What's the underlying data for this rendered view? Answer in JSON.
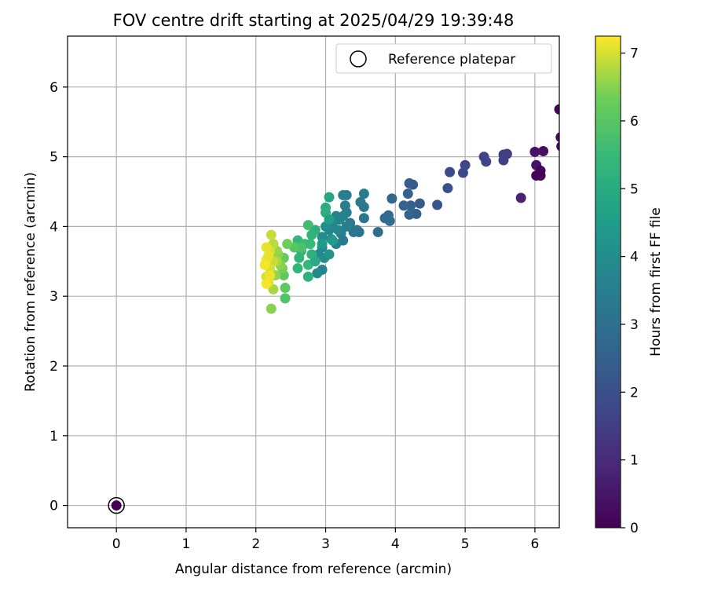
{
  "chart_data": {
    "type": "scatter",
    "title": "FOV centre drift starting at 2025/04/29 19:39:48",
    "xlabel": "Angular distance from reference (arcmin)",
    "ylabel": "Rotation from reference (arcmin)",
    "xlim": [
      -0.7,
      6.35
    ],
    "ylim": [
      -0.32,
      6.73
    ],
    "xticks": [
      "0",
      "1",
      "2",
      "3",
      "4",
      "5",
      "6"
    ],
    "yticks": [
      "0",
      "1",
      "2",
      "3",
      "4",
      "5",
      "6"
    ],
    "grid": true,
    "legend": {
      "position": "top-right",
      "entries": [
        {
          "label": "Reference platepar",
          "marker": "open-circle"
        }
      ]
    },
    "colorbar": {
      "label": "Hours from first FF file",
      "range": [
        0,
        7.25
      ],
      "ticks": [
        "0",
        "1",
        "2",
        "3",
        "4",
        "5",
        "6",
        "7"
      ],
      "colormap": "viridis"
    },
    "reference_point": {
      "x": 0,
      "y": 0
    },
    "series": [
      {
        "points": [
          {
            "x": 6.35,
            "y": 5.68,
            "t": 0.15
          },
          {
            "x": 6.37,
            "y": 5.28,
            "t": 0.2
          },
          {
            "x": 6.38,
            "y": 5.15,
            "t": 0.25
          },
          {
            "x": 6.12,
            "y": 5.08,
            "t": 0.35
          },
          {
            "x": 6.0,
            "y": 5.07,
            "t": 0.4
          },
          {
            "x": 6.02,
            "y": 4.88,
            "t": 0.45
          },
          {
            "x": 6.08,
            "y": 4.8,
            "t": 0.1
          },
          {
            "x": 6.08,
            "y": 4.73,
            "t": 0.05
          },
          {
            "x": 6.02,
            "y": 4.73,
            "t": 0.1
          },
          {
            "x": 5.8,
            "y": 4.41,
            "t": 0.8
          },
          {
            "x": 5.6,
            "y": 5.04,
            "t": 1.5
          },
          {
            "x": 5.55,
            "y": 5.03,
            "t": 1.55
          },
          {
            "x": 5.55,
            "y": 4.95,
            "t": 1.6
          },
          {
            "x": 5.3,
            "y": 4.93,
            "t": 1.7
          },
          {
            "x": 5.27,
            "y": 5.0,
            "t": 1.65
          },
          {
            "x": 5.0,
            "y": 4.88,
            "t": 1.8
          },
          {
            "x": 4.97,
            "y": 4.77,
            "t": 1.85
          },
          {
            "x": 4.78,
            "y": 4.78,
            "t": 1.9
          },
          {
            "x": 4.75,
            "y": 4.55,
            "t": 2.0
          },
          {
            "x": 4.6,
            "y": 4.31,
            "t": 2.2
          },
          {
            "x": 4.35,
            "y": 4.33,
            "t": 2.3
          },
          {
            "x": 4.3,
            "y": 4.18,
            "t": 2.4
          },
          {
            "x": 4.25,
            "y": 4.6,
            "t": 2.35
          },
          {
            "x": 4.2,
            "y": 4.62,
            "t": 2.4
          },
          {
            "x": 4.18,
            "y": 4.47,
            "t": 2.5
          },
          {
            "x": 4.22,
            "y": 4.3,
            "t": 2.55
          },
          {
            "x": 4.12,
            "y": 4.3,
            "t": 2.6
          },
          {
            "x": 4.2,
            "y": 4.17,
            "t": 2.6
          },
          {
            "x": 3.95,
            "y": 4.4,
            "t": 2.7
          },
          {
            "x": 3.9,
            "y": 4.16,
            "t": 2.8
          },
          {
            "x": 3.85,
            "y": 4.12,
            "t": 2.85
          },
          {
            "x": 3.92,
            "y": 4.08,
            "t": 2.9
          },
          {
            "x": 3.75,
            "y": 3.92,
            "t": 2.95
          },
          {
            "x": 3.55,
            "y": 4.47,
            "t": 3.4
          },
          {
            "x": 3.55,
            "y": 4.28,
            "t": 3.25
          },
          {
            "x": 3.55,
            "y": 4.12,
            "t": 3.2
          },
          {
            "x": 3.5,
            "y": 4.35,
            "t": 3.3
          },
          {
            "x": 3.48,
            "y": 3.92,
            "t": 3.15
          },
          {
            "x": 3.45,
            "y": 3.95,
            "t": 3.1
          },
          {
            "x": 3.4,
            "y": 3.92,
            "t": 3.2
          },
          {
            "x": 3.35,
            "y": 4.05,
            "t": 3.3
          },
          {
            "x": 3.3,
            "y": 4.45,
            "t": 3.45
          },
          {
            "x": 3.25,
            "y": 4.45,
            "t": 3.55
          },
          {
            "x": 3.28,
            "y": 4.3,
            "t": 3.5
          },
          {
            "x": 3.3,
            "y": 4.2,
            "t": 3.4
          },
          {
            "x": 3.25,
            "y": 4.15,
            "t": 3.6
          },
          {
            "x": 3.2,
            "y": 4.1,
            "t": 3.65
          },
          {
            "x": 3.15,
            "y": 4.15,
            "t": 3.7
          },
          {
            "x": 3.3,
            "y": 4.0,
            "t": 3.5
          },
          {
            "x": 3.22,
            "y": 3.9,
            "t": 3.45
          },
          {
            "x": 3.25,
            "y": 3.8,
            "t": 3.35
          },
          {
            "x": 3.15,
            "y": 3.75,
            "t": 3.6
          },
          {
            "x": 3.18,
            "y": 3.95,
            "t": 3.75
          },
          {
            "x": 3.1,
            "y": 4.05,
            "t": 3.8
          },
          {
            "x": 3.05,
            "y": 3.95,
            "t": 3.85
          },
          {
            "x": 3.08,
            "y": 3.82,
            "t": 3.9
          },
          {
            "x": 3.0,
            "y": 4.0,
            "t": 4.0
          },
          {
            "x": 2.95,
            "y": 3.85,
            "t": 3.95
          },
          {
            "x": 2.95,
            "y": 3.7,
            "t": 3.8
          },
          {
            "x": 2.9,
            "y": 3.6,
            "t": 3.85
          },
          {
            "x": 2.98,
            "y": 3.55,
            "t": 3.95
          },
          {
            "x": 3.05,
            "y": 3.6,
            "t": 4.2
          },
          {
            "x": 2.95,
            "y": 3.38,
            "t": 3.7
          },
          {
            "x": 2.88,
            "y": 3.33,
            "t": 3.9
          },
          {
            "x": 3.05,
            "y": 4.42,
            "t": 4.8
          },
          {
            "x": 3.0,
            "y": 4.27,
            "t": 5.0
          },
          {
            "x": 3.0,
            "y": 4.2,
            "t": 5.1
          },
          {
            "x": 3.05,
            "y": 4.1,
            "t": 4.6
          },
          {
            "x": 3.1,
            "y": 3.8,
            "t": 4.5
          },
          {
            "x": 2.95,
            "y": 3.75,
            "t": 4.4
          },
          {
            "x": 2.85,
            "y": 3.95,
            "t": 5.1
          },
          {
            "x": 2.8,
            "y": 3.88,
            "t": 5.3
          },
          {
            "x": 2.75,
            "y": 4.02,
            "t": 5.6
          },
          {
            "x": 2.78,
            "y": 3.75,
            "t": 5.5
          },
          {
            "x": 2.8,
            "y": 3.6,
            "t": 5.2
          },
          {
            "x": 2.7,
            "y": 3.75,
            "t": 5.5
          },
          {
            "x": 2.65,
            "y": 3.65,
            "t": 5.4
          },
          {
            "x": 2.6,
            "y": 3.8,
            "t": 5.4
          },
          {
            "x": 2.62,
            "y": 3.55,
            "t": 5.3
          },
          {
            "x": 2.6,
            "y": 3.4,
            "t": 5.35
          },
          {
            "x": 2.75,
            "y": 3.45,
            "t": 5.4
          },
          {
            "x": 2.75,
            "y": 3.28,
            "t": 5.2
          },
          {
            "x": 2.85,
            "y": 3.5,
            "t": 5.0
          },
          {
            "x": 2.65,
            "y": 3.7,
            "t": 5.8
          },
          {
            "x": 2.55,
            "y": 3.7,
            "t": 6.0
          },
          {
            "x": 2.45,
            "y": 3.75,
            "t": 6.3
          },
          {
            "x": 2.4,
            "y": 3.55,
            "t": 6.2
          },
          {
            "x": 2.4,
            "y": 3.3,
            "t": 6.1
          },
          {
            "x": 2.42,
            "y": 3.12,
            "t": 6.1
          },
          {
            "x": 2.42,
            "y": 2.97,
            "t": 5.9
          },
          {
            "x": 2.38,
            "y": 3.4,
            "t": 6.4
          },
          {
            "x": 2.35,
            "y": 3.45,
            "t": 6.5
          },
          {
            "x": 2.32,
            "y": 3.6,
            "t": 6.5
          },
          {
            "x": 2.3,
            "y": 3.65,
            "t": 6.6
          },
          {
            "x": 2.3,
            "y": 3.5,
            "t": 6.7
          },
          {
            "x": 2.28,
            "y": 3.3,
            "t": 6.6
          },
          {
            "x": 2.25,
            "y": 3.75,
            "t": 6.8
          },
          {
            "x": 2.22,
            "y": 3.88,
            "t": 6.9
          },
          {
            "x": 2.25,
            "y": 3.5,
            "t": 6.9
          },
          {
            "x": 2.25,
            "y": 3.1,
            "t": 6.7
          },
          {
            "x": 2.22,
            "y": 2.82,
            "t": 6.5
          },
          {
            "x": 2.2,
            "y": 3.65,
            "t": 7.0
          },
          {
            "x": 2.2,
            "y": 3.4,
            "t": 7.0
          },
          {
            "x": 2.18,
            "y": 3.2,
            "t": 7.05
          },
          {
            "x": 2.15,
            "y": 3.7,
            "t": 7.1
          },
          {
            "x": 2.15,
            "y": 3.28,
            "t": 7.0
          },
          {
            "x": 2.15,
            "y": 3.52,
            "t": 7.15
          },
          {
            "x": 2.13,
            "y": 3.45,
            "t": 7.2
          },
          {
            "x": 2.18,
            "y": 3.58,
            "t": 7.1
          },
          {
            "x": 2.2,
            "y": 3.3,
            "t": 7.15
          },
          {
            "x": 2.15,
            "y": 3.18,
            "t": 7.2
          }
        ]
      }
    ]
  }
}
